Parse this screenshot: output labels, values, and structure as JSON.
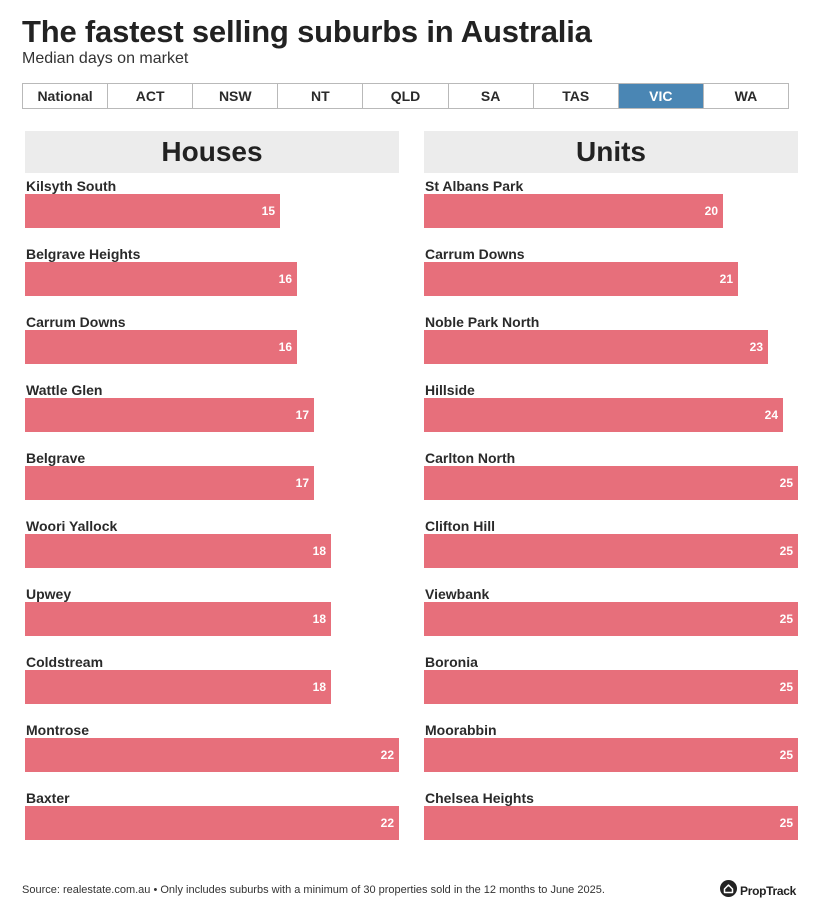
{
  "title": "The fastest selling suburbs in Australia",
  "subtitle": "Median days on market",
  "tabs": [
    "National",
    "ACT",
    "NSW",
    "NT",
    "QLD",
    "SA",
    "TAS",
    "VIC",
    "WA"
  ],
  "active_tab": "VIC",
  "colors": {
    "bar": "#e76f7b",
    "active_tab": "#4a86b4",
    "header_bg": "#ececec"
  },
  "chart_data": [
    {
      "type": "bar",
      "title": "Houses",
      "orientation": "horizontal",
      "categories": [
        "Kilsyth South",
        "Belgrave Heights",
        "Carrum Downs",
        "Wattle Glen",
        "Belgrave",
        "Woori Yallock",
        "Upwey",
        "Coldstream",
        "Montrose",
        "Baxter"
      ],
      "values": [
        15,
        16,
        16,
        17,
        17,
        18,
        18,
        18,
        22,
        22
      ],
      "xlim": [
        0,
        22
      ]
    },
    {
      "type": "bar",
      "title": "Units",
      "orientation": "horizontal",
      "categories": [
        "St Albans Park",
        "Carrum Downs",
        "Noble Park North",
        "Hillside",
        "Carlton North",
        "Clifton Hill",
        "Viewbank",
        "Boronia",
        "Moorabbin",
        "Chelsea Heights"
      ],
      "values": [
        20,
        21,
        23,
        24,
        25,
        25,
        25,
        25,
        25,
        25
      ],
      "xlim": [
        0,
        25
      ]
    }
  ],
  "source": "Source: realestate.com.au • Only includes suburbs with a minimum of 30 properties sold in the 12 months to June 2025.",
  "logo": {
    "text": "PropTrack",
    "icon": "house-icon"
  }
}
